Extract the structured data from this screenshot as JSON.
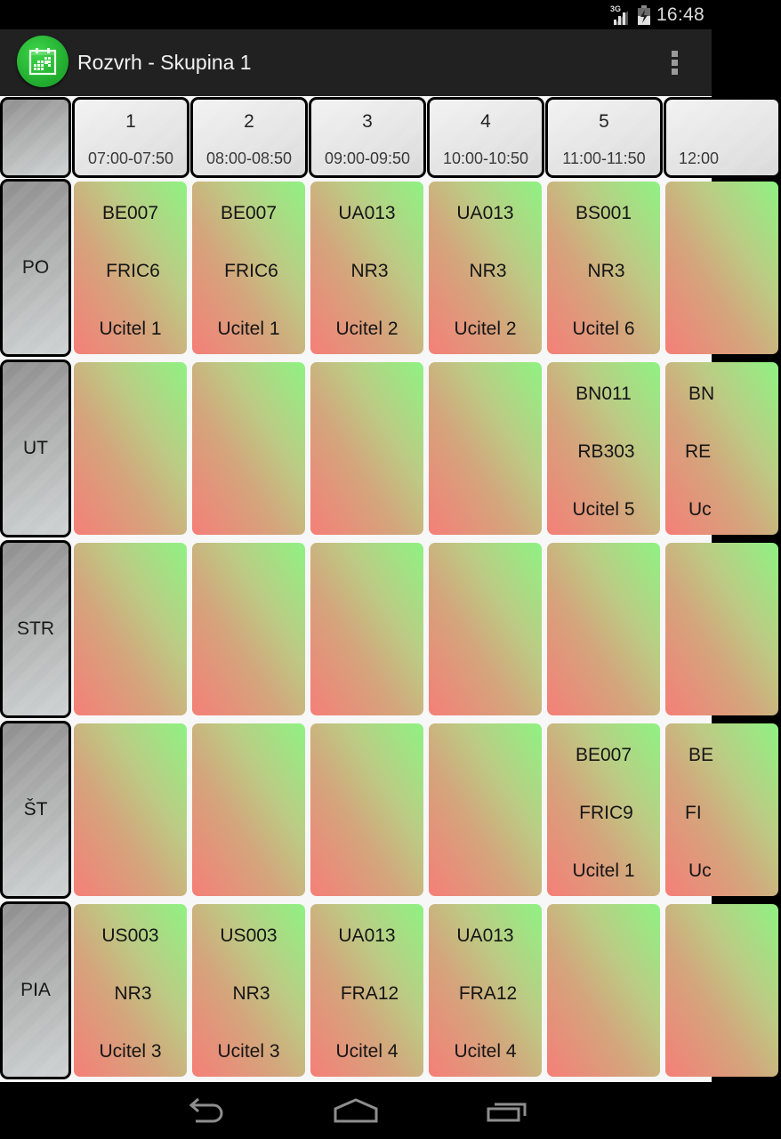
{
  "status_bar": {
    "network": "3G",
    "time": "16:48",
    "icons": [
      "signal-icon",
      "battery-charging-icon"
    ]
  },
  "action_bar": {
    "app_icon": "calendar-icon",
    "title": "Rozvrh - Skupina 1",
    "overflow_icon": "overflow-menu-icon"
  },
  "colors": {
    "lesson_gradient_top": "#8ff283",
    "lesson_gradient_bottom": "#f57f78",
    "header_bg": "#e4e4e4",
    "day_bg": "#a8a8a8",
    "action_bar_bg": "#212121",
    "app_icon_green": "#26b233"
  },
  "periods": [
    {
      "num": "1",
      "time": "07:00-07:50"
    },
    {
      "num": "2",
      "time": "08:00-08:50"
    },
    {
      "num": "3",
      "time": "09:00-09:50"
    },
    {
      "num": "4",
      "time": "10:00-10:50"
    },
    {
      "num": "5",
      "time": "11:00-11:50"
    },
    {
      "num": "",
      "time": "12:00"
    }
  ],
  "days": [
    {
      "label": "PO",
      "lessons": [
        {
          "subject": "BE007",
          "room": "FRIC6",
          "teacher": "Ucitel 1"
        },
        {
          "subject": "BE007",
          "room": "FRIC6",
          "teacher": "Ucitel 1"
        },
        {
          "subject": "UA013",
          "room": "NR3",
          "teacher": "Ucitel 2"
        },
        {
          "subject": "UA013",
          "room": "NR3",
          "teacher": "Ucitel 2"
        },
        {
          "subject": "BS001",
          "room": "NR3",
          "teacher": "Ucitel 6"
        },
        {
          "subject": "",
          "room": "",
          "teacher": ""
        }
      ]
    },
    {
      "label": "UT",
      "lessons": [
        {
          "subject": "",
          "room": "",
          "teacher": ""
        },
        {
          "subject": "",
          "room": "",
          "teacher": ""
        },
        {
          "subject": "",
          "room": "",
          "teacher": ""
        },
        {
          "subject": "",
          "room": "",
          "teacher": ""
        },
        {
          "subject": "BN011",
          "room": "RB303",
          "teacher": "Ucitel 5"
        },
        {
          "subject": "BN",
          "room": "RE",
          "teacher": "Uc"
        }
      ]
    },
    {
      "label": "STR",
      "lessons": [
        {
          "subject": "",
          "room": "",
          "teacher": ""
        },
        {
          "subject": "",
          "room": "",
          "teacher": ""
        },
        {
          "subject": "",
          "room": "",
          "teacher": ""
        },
        {
          "subject": "",
          "room": "",
          "teacher": ""
        },
        {
          "subject": "",
          "room": "",
          "teacher": ""
        },
        {
          "subject": "",
          "room": "",
          "teacher": ""
        }
      ]
    },
    {
      "label": "ŠT",
      "lessons": [
        {
          "subject": "",
          "room": "",
          "teacher": ""
        },
        {
          "subject": "",
          "room": "",
          "teacher": ""
        },
        {
          "subject": "",
          "room": "",
          "teacher": ""
        },
        {
          "subject": "",
          "room": "",
          "teacher": ""
        },
        {
          "subject": "BE007",
          "room": "FRIC9",
          "teacher": "Ucitel 1"
        },
        {
          "subject": "BE",
          "room": "FI",
          "teacher": "Uc"
        }
      ]
    },
    {
      "label": "PIA",
      "lessons": [
        {
          "subject": "US003",
          "room": "NR3",
          "teacher": "Ucitel 3"
        },
        {
          "subject": "US003",
          "room": "NR3",
          "teacher": "Ucitel 3"
        },
        {
          "subject": "UA013",
          "room": "FRA12",
          "teacher": "Ucitel 4"
        },
        {
          "subject": "UA013",
          "room": "FRA12",
          "teacher": "Ucitel 4"
        },
        {
          "subject": "",
          "room": "",
          "teacher": ""
        },
        {
          "subject": "",
          "room": "",
          "teacher": ""
        }
      ]
    }
  ],
  "nav_bar": {
    "back_icon": "back-icon",
    "home_icon": "home-icon",
    "recents_icon": "recent-apps-icon"
  }
}
